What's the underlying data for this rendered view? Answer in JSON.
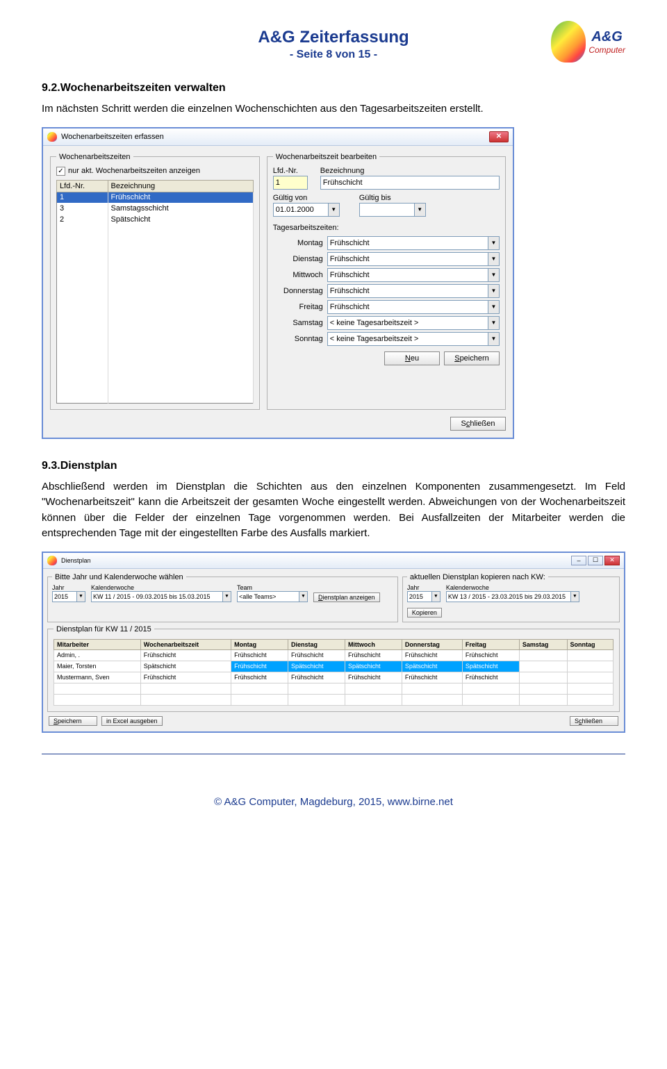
{
  "header": {
    "title": "A&G Zeiterfassung",
    "subtitle": "- Seite 8 von 15 -",
    "logo_text": "A&G",
    "logo_sub": "Computer"
  },
  "section92": {
    "heading": "9.2.Wochenarbeitszeiten verwalten",
    "text": "Im nächsten Schritt werden die einzelnen Wochenschichten aus den Tagesarbeitszeiten erstellt."
  },
  "dialog1": {
    "title": "Wochenarbeitszeiten erfassen",
    "group_left": "Wochenarbeitszeiten",
    "group_right": "Wochenarbeitszeit bearbeiten",
    "checkbox_label": "nur akt. Wochenarbeitszeiten anzeigen",
    "checkbox_checked": "✓",
    "col_lfd": "Lfd.-Nr.",
    "col_bez": "Bezeichnung",
    "rows": [
      {
        "nr": "1",
        "bez": "Frühschicht",
        "selected": true
      },
      {
        "nr": "3",
        "bez": "Samstagsschicht",
        "selected": false
      },
      {
        "nr": "2",
        "bez": "Spätschicht",
        "selected": false
      }
    ],
    "edit": {
      "lfd_label": "Lfd.-Nr.",
      "lfd_value": "1",
      "bez_label": "Bezeichnung",
      "bez_value": "Frühschicht",
      "von_label": "Gültig von",
      "von_value": "01.01.2000",
      "bis_label": "Gültig bis",
      "bis_value": "",
      "days_label": "Tagesarbeitszeiten:",
      "days": [
        {
          "label": "Montag",
          "value": "Frühschicht"
        },
        {
          "label": "Dienstag",
          "value": "Frühschicht"
        },
        {
          "label": "Mittwoch",
          "value": "Frühschicht"
        },
        {
          "label": "Donnerstag",
          "value": "Frühschicht"
        },
        {
          "label": "Freitag",
          "value": "Frühschicht"
        },
        {
          "label": "Samstag",
          "value": "< keine Tagesarbeitszeit >"
        },
        {
          "label": "Sonntag",
          "value": "< keine Tagesarbeitszeit >"
        }
      ],
      "btn_new": "Neu",
      "btn_save": "Speichern"
    },
    "btn_close": "Schließen"
  },
  "section93": {
    "heading": "9.3.Dienstplan",
    "text": "Abschließend werden im Dienstplan die Schichten aus den einzelnen Komponenten zusammengesetzt. Im Feld \"Wochenarbeitszeit\" kann die Arbeitszeit der gesamten Woche eingestellt werden. Abweichungen von der Wochenarbeitszeit können über die Felder der einzelnen Tage vorgenommen werden. Bei Ausfallzeiten der Mitarbeiter werden die entsprechenden Tage mit der eingestellten Farbe des Ausfalls markiert."
  },
  "dialog2": {
    "title": "Dienstplan",
    "group_select": "Bitte Jahr und Kalenderwoche wählen",
    "group_copy": "aktuellen Dienstplan kopieren nach KW:",
    "jahr_label": "Jahr",
    "kw_label": "Kalenderwoche",
    "team_label": "Team",
    "jahr_value": "2015",
    "kw_value": "KW 11 / 2015 - 09.03.2015 bis 15.03.2015",
    "team_value": "<alle Teams>",
    "btn_show": "Dienstplan anzeigen",
    "copy_jahr": "2015",
    "copy_kw": "KW 13 / 2015 - 23.03.2015 bis 29.03.2015",
    "btn_copy": "Kopieren",
    "roster_legend": "Dienstplan für KW 11 / 2015",
    "columns": [
      "Mitarbeiter",
      "Wochenarbeitszeit",
      "Montag",
      "Dienstag",
      "Mittwoch",
      "Donnerstag",
      "Freitag",
      "Samstag",
      "Sonntag"
    ],
    "rows": [
      {
        "cells": [
          "Admin, .",
          "Frühschicht",
          "Frühschicht",
          "Frühschicht",
          "Frühschicht",
          "Frühschicht",
          "Frühschicht",
          "",
          ""
        ],
        "hl": []
      },
      {
        "cells": [
          "Maier, Torsten",
          "Spätschicht",
          "Frühschicht",
          "Spätschicht",
          "Spätschicht",
          "Spätschicht",
          "Spätschicht",
          "",
          ""
        ],
        "hl": [
          2,
          3,
          4,
          5,
          6
        ]
      },
      {
        "cells": [
          "Mustermann, Sven",
          "Frühschicht",
          "Frühschicht",
          "Frühschicht",
          "Frühschicht",
          "Frühschicht",
          "Frühschicht",
          "",
          ""
        ],
        "hl": []
      }
    ],
    "btn_save": "Speichern",
    "btn_excel": "in Excel ausgeben",
    "btn_close": "Schließen"
  },
  "footer": "© A&G Computer, Magdeburg, 2015, www.birne.net"
}
